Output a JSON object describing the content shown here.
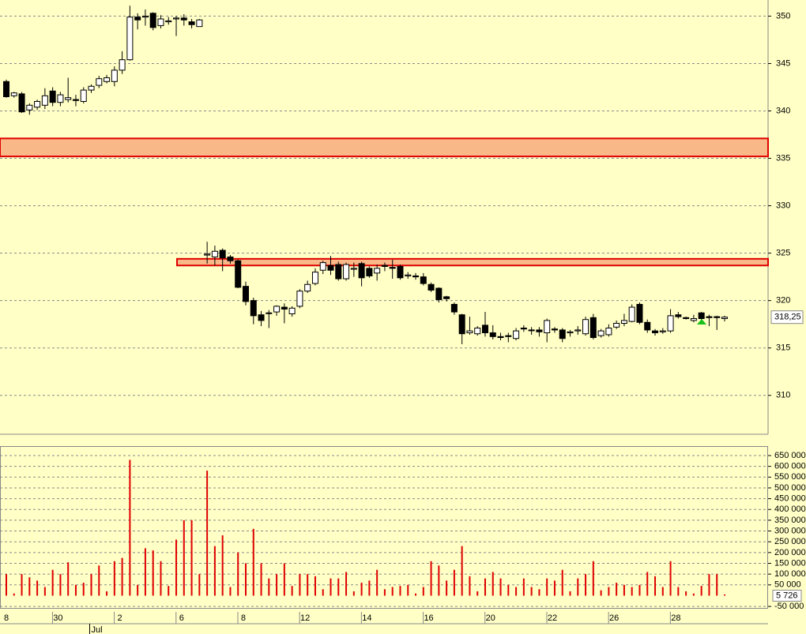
{
  "chart_data": [
    {
      "type": "candlestick",
      "categories": [
        "8",
        null,
        null,
        null,
        null,
        null,
        null,
        "30",
        null,
        null,
        null,
        null,
        null,
        null,
        null,
        "2",
        null,
        null,
        null,
        null,
        null,
        null,
        null,
        "6",
        null,
        null,
        null,
        null,
        null,
        null,
        null,
        "8",
        null,
        null,
        null,
        null,
        null,
        null,
        null,
        "12",
        null,
        null,
        null,
        null,
        null,
        null,
        null,
        "14",
        null,
        null,
        null,
        null,
        null,
        null,
        null,
        "16",
        null,
        null,
        null,
        null,
        null,
        null,
        null,
        "20",
        null,
        null,
        null,
        null,
        null,
        null,
        null,
        "22",
        null,
        null,
        null,
        null,
        null,
        null,
        null,
        "26",
        null,
        null,
        null,
        null,
        null,
        null,
        null,
        "28",
        null,
        null,
        null,
        null,
        null,
        null
      ],
      "months": [
        null,
        null,
        null,
        null,
        null,
        null,
        null,
        null,
        null,
        null,
        null,
        "Jul",
        null,
        null,
        null,
        null,
        null,
        null,
        null,
        null,
        null,
        null,
        null,
        null,
        null,
        null,
        null,
        null,
        null,
        null,
        null,
        null,
        null,
        null,
        null,
        null,
        null,
        null,
        null,
        null,
        null,
        null,
        null,
        null,
        null,
        null,
        null,
        null,
        null,
        null,
        null,
        null,
        null,
        null,
        null,
        null,
        null,
        null,
        null,
        null,
        null,
        null,
        null,
        null,
        null,
        null,
        null,
        null,
        null,
        null,
        null,
        null,
        null,
        null,
        null,
        null,
        null,
        null,
        null,
        null,
        null,
        null,
        null,
        null,
        null,
        null,
        null,
        null,
        null,
        null,
        null,
        null,
        null,
        null
      ],
      "open": [
        343.1,
        341.6,
        341.8,
        340.1,
        340.4,
        340.6,
        342.1,
        340.9,
        341.2,
        341.2,
        341.0,
        342.2,
        342.7,
        343.1,
        343.1,
        344.3,
        345.4,
        349.9,
        349.9,
        350.3,
        349.0,
        349.4,
        349.7,
        349.8,
        349.4,
        348.9,
        324.8,
        324.6,
        325.3,
        324.6,
        324.2,
        321.5,
        320.0,
        318.5,
        318.7,
        318.8,
        319.3,
        318.6,
        319.4,
        321.0,
        321.8,
        323.2,
        323.7,
        323.8,
        322.3,
        323.3,
        323.9,
        323.4,
        322.9,
        323.7,
        323.5,
        323.6,
        322.6,
        322.6,
        322.5,
        321.7,
        321.3,
        320.4,
        319.6,
        318.5,
        316.6,
        316.5,
        317.4,
        316.6,
        316.2,
        316.3,
        316.0,
        317.1,
        316.9,
        316.9,
        316.6,
        317.0,
        316.9,
        316.6,
        316.8,
        316.5,
        318.2,
        316.3,
        316.4,
        317.2,
        317.6,
        317.8,
        319.6,
        317.7,
        316.8,
        316.7,
        316.8,
        318.5,
        318.2,
        317.9,
        318.7,
        318.3,
        318.3,
        318.1
      ],
      "high": [
        343.3,
        342.0,
        342.0,
        340.8,
        341.2,
        342.4,
        342.5,
        342.0,
        343.5,
        341.7,
        342.5,
        342.8,
        343.7,
        343.8,
        344.7,
        346.3,
        351.1,
        350.3,
        350.7,
        350.4,
        350.1,
        349.9,
        350.0,
        350.2,
        349.7,
        349.7,
        326.2,
        325.8,
        325.5,
        324.8,
        324.3,
        322.0,
        320.3,
        318.9,
        319.0,
        319.5,
        319.7,
        319.4,
        321.2,
        322.1,
        323.4,
        324.2,
        324.7,
        324.1,
        324.0,
        324.0,
        324.1,
        323.6,
        323.8,
        324.0,
        324.3,
        323.8,
        323.0,
        322.9,
        322.9,
        321.9,
        321.4,
        320.5,
        319.8,
        318.6,
        318.3,
        317.3,
        318.8,
        317.4,
        316.6,
        316.6,
        317.1,
        317.4,
        317.2,
        317.2,
        318.1,
        317.2,
        317.1,
        316.9,
        317.3,
        318.3,
        318.6,
        317.0,
        317.5,
        317.9,
        318.6,
        319.6,
        319.8,
        318.0,
        317.0,
        317.1,
        319.1,
        318.8,
        318.3,
        318.5,
        318.8,
        318.5,
        318.4,
        318.4
      ],
      "low": [
        341.4,
        341.4,
        339.8,
        339.6,
        340.1,
        340.2,
        340.5,
        340.5,
        340.9,
        340.5,
        340.8,
        341.9,
        342.4,
        342.9,
        342.6,
        343.9,
        345.3,
        348.6,
        349.0,
        348.5,
        348.7,
        349.1,
        347.9,
        349.0,
        348.7,
        348.9,
        323.9,
        323.7,
        323.1,
        323.9,
        321.3,
        319.5,
        317.5,
        317.3,
        317.1,
        318.4,
        317.6,
        318.3,
        319.2,
        320.8,
        321.6,
        322.8,
        322.7,
        322.1,
        322.1,
        322.5,
        321.5,
        322.4,
        322.1,
        323.1,
        322.3,
        322.2,
        322.3,
        322.2,
        321.6,
        320.9,
        319.8,
        319.9,
        318.5,
        315.4,
        316.4,
        316.3,
        316.2,
        315.9,
        315.8,
        315.6,
        315.8,
        316.7,
        316.4,
        316.2,
        315.6,
        316.6,
        315.6,
        316.2,
        316.4,
        316.3,
        315.9,
        316.1,
        316.2,
        317.0,
        317.3,
        317.7,
        317.5,
        316.6,
        316.3,
        316.5,
        316.6,
        318.1,
        318.0,
        317.7,
        317.5,
        317.3,
        316.9,
        317.8
      ],
      "close": [
        341.5,
        341.9,
        339.9,
        340.6,
        341.0,
        341.6,
        340.9,
        341.7,
        341.4,
        341.1,
        342.2,
        342.6,
        343.4,
        343.5,
        344.3,
        345.4,
        349.9,
        349.6,
        350.0,
        348.8,
        349.7,
        349.5,
        349.8,
        349.6,
        349.1,
        349.6,
        324.9,
        325.2,
        324.5,
        324.2,
        321.4,
        319.9,
        318.4,
        317.9,
        318.7,
        319.4,
        319.1,
        319.2,
        321.0,
        321.7,
        323.0,
        324.0,
        323.2,
        322.3,
        323.8,
        323.4,
        322.4,
        322.6,
        323.4,
        323.6,
        323.4,
        322.4,
        322.7,
        322.5,
        321.8,
        321.1,
        320.1,
        320.2,
        318.8,
        316.5,
        316.8,
        317.1,
        316.6,
        316.2,
        316.1,
        316.2,
        316.8,
        317.0,
        316.9,
        316.7,
        317.9,
        316.9,
        316.0,
        316.7,
        316.9,
        318.0,
        316.1,
        316.8,
        317.1,
        317.6,
        317.9,
        319.3,
        317.7,
        316.9,
        316.6,
        316.8,
        318.4,
        318.3,
        318.1,
        318.1,
        318.1,
        318.2,
        318.2,
        318.25
      ],
      "zones": [
        {
          "low": 335.2,
          "high": 337.1
        },
        {
          "low": 323.7,
          "high": 324.4
        }
      ],
      "zone_color": "#f8b888",
      "zone_edge": "#e00000",
      "current_price": {
        "value": 318.25,
        "label": "318,25"
      },
      "ylim": [
        305.9,
        351.7
      ],
      "yticks": [
        310,
        315,
        320,
        325,
        330,
        335,
        340,
        345,
        350
      ],
      "grid": true
    },
    {
      "type": "bar",
      "color": "#e00000",
      "values": [
        100000,
        10000,
        100000,
        85000,
        70000,
        40000,
        120000,
        100000,
        155000,
        50000,
        60000,
        100000,
        140000,
        20000,
        160000,
        175000,
        630000,
        50000,
        220000,
        210000,
        160000,
        45000,
        260000,
        350000,
        350000,
        100000,
        580000,
        230000,
        280000,
        40000,
        200000,
        150000,
        310000,
        150000,
        80000,
        100000,
        150000,
        45000,
        100000,
        100000,
        90000,
        30000,
        80000,
        80000,
        110000,
        20000,
        60000,
        70000,
        120000,
        30000,
        40000,
        45000,
        50000,
        10000,
        40000,
        160000,
        140000,
        70000,
        120000,
        230000,
        90000,
        20000,
        80000,
        110000,
        80000,
        50000,
        40000,
        80000,
        40000,
        30000,
        80000,
        70000,
        120000,
        20000,
        80000,
        100000,
        160000,
        25000,
        40000,
        60000,
        50000,
        40000,
        50000,
        110000,
        90000,
        40000,
        160000,
        40000,
        20000,
        10000,
        45000,
        100000,
        100000,
        5726
      ],
      "current_volume": {
        "value": 5726,
        "label": "5 726"
      },
      "ylim": [
        -57000,
        694000
      ],
      "yticks": [
        {
          "value": -50000,
          "label": "-50 000"
        },
        {
          "value": 50000,
          "label": "50 000"
        },
        {
          "value": 100000,
          "label": "100 000"
        },
        {
          "value": 150000,
          "label": "150 000"
        },
        {
          "value": 200000,
          "label": "200 000"
        },
        {
          "value": 250000,
          "label": "250 000"
        },
        {
          "value": 300000,
          "label": "300 000"
        },
        {
          "value": 350000,
          "label": "350 000"
        },
        {
          "value": 400000,
          "label": "400 000"
        },
        {
          "value": 450000,
          "label": "450 000"
        },
        {
          "value": 500000,
          "label": "500 000"
        },
        {
          "value": 550000,
          "label": "550 000"
        },
        {
          "value": 600000,
          "label": "600 000"
        },
        {
          "value": 650000,
          "label": "650 000"
        }
      ],
      "grid": true
    }
  ]
}
